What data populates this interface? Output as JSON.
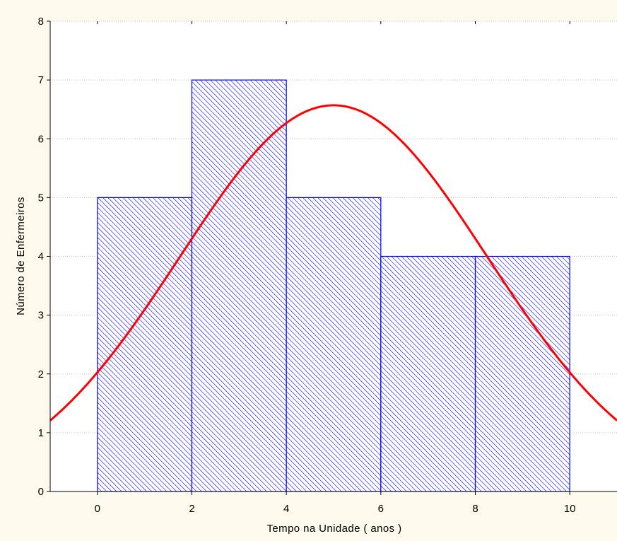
{
  "chart_data": {
    "type": "bar",
    "title": "",
    "xlabel": "Tempo na Unidade ( anos )",
    "ylabel": "Número de Enfermeiros",
    "xlim": [
      -1,
      11
    ],
    "ylim": [
      0,
      8
    ],
    "x_ticks": [
      0,
      2,
      4,
      6,
      8,
      10
    ],
    "y_ticks": [
      0,
      1,
      2,
      3,
      4,
      5,
      6,
      7,
      8
    ],
    "grid": true,
    "bins": [
      {
        "from": 0,
        "to": 2,
        "value": 5
      },
      {
        "from": 2,
        "to": 4,
        "value": 7
      },
      {
        "from": 4,
        "to": 6,
        "value": 5
      },
      {
        "from": 6,
        "to": 8,
        "value": 4
      },
      {
        "from": 8,
        "to": 10,
        "value": 4
      }
    ],
    "fitted_curve": {
      "type": "normal",
      "mean": 5,
      "peak": 6.57,
      "sd": 3.26
    },
    "colors": {
      "bar_stroke": "#0000ff",
      "bar_hatch": "#0000ff",
      "curve": "#ff0000",
      "grid": "#bfbfbf",
      "background": "#fdf9ec",
      "plot_background": "#ffffff"
    }
  }
}
